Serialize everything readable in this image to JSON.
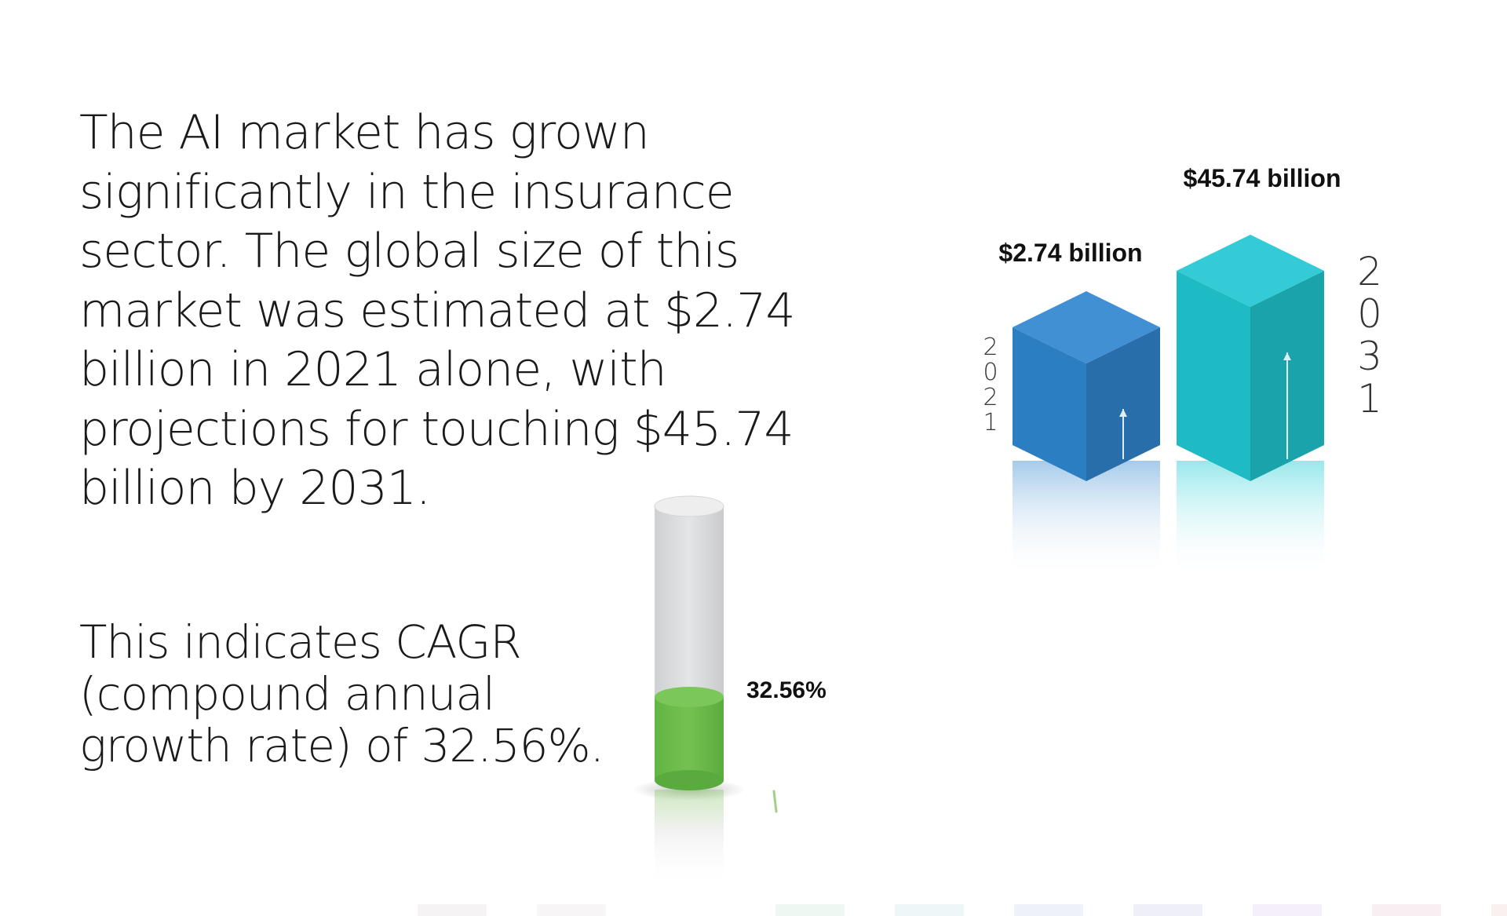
{
  "intro_text": "The AI market has grown significantly in the insurance sector. The global size of this market was estimated at $2.74 billion in 2021 alone, with projections for touching $45.74 billion by 2031.",
  "cagr_text": "This indicates CAGR (compound annual growth rate) of 32.56%.",
  "chart_data": [
    {
      "type": "bar",
      "categories": [
        "2021",
        "2031"
      ],
      "values": [
        2.74,
        45.74
      ],
      "data_labels": [
        "$2.74 billion",
        "$45.74 billion"
      ],
      "colors": [
        "#2f86cf",
        "#21c7d2"
      ]
    },
    {
      "type": "bar",
      "values": [
        32.56
      ],
      "max": 100,
      "data_labels": [
        "32.56%"
      ],
      "colors": [
        "#6cbb4b",
        "#d8d9db"
      ]
    }
  ],
  "accent_colors": [
    "#2f86cf",
    "#21c7d2",
    "#6cbb4b"
  ]
}
